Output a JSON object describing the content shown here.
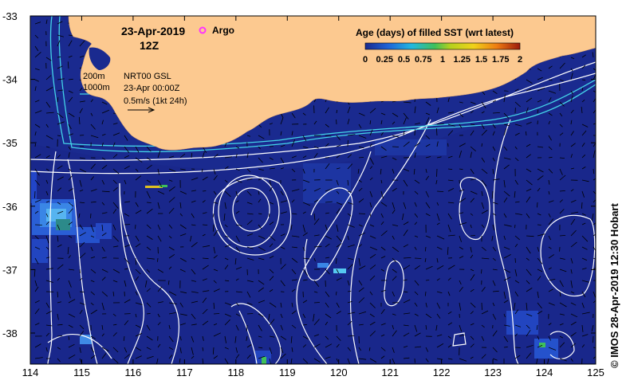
{
  "map": {
    "title_date": "23-Apr-2019",
    "title_time": "12Z",
    "argo_label": "Argo",
    "legend_title": "Age (days) of filled SST (wrt latest)",
    "legend_ticks": [
      "0",
      "0.25",
      "0.5",
      "0.75",
      "1",
      "1.25",
      "1.5",
      "1.75",
      "2"
    ],
    "contour_200m": "200m",
    "contour_1000m": "1000m",
    "product": "NRT00 GSL",
    "product_time": "23-Apr 00:00Z",
    "vector_scale": "0.5m/s (1kt 24h)",
    "x_ticks": [
      "114",
      "115",
      "116",
      "117",
      "118",
      "119",
      "120",
      "121",
      "122",
      "123",
      "124",
      "125"
    ],
    "y_ticks": [
      "-33",
      "-34",
      "-35",
      "-36",
      "-37",
      "-38"
    ],
    "credit": "© IMOS 28-Apr-2019 12:30 Hobart",
    "colors": {
      "ocean": "#1a2a8f",
      "land": "#fcc990",
      "contour": "#ffffff",
      "isobath": "#44d4e8",
      "argo": "#ff33ff"
    }
  }
}
